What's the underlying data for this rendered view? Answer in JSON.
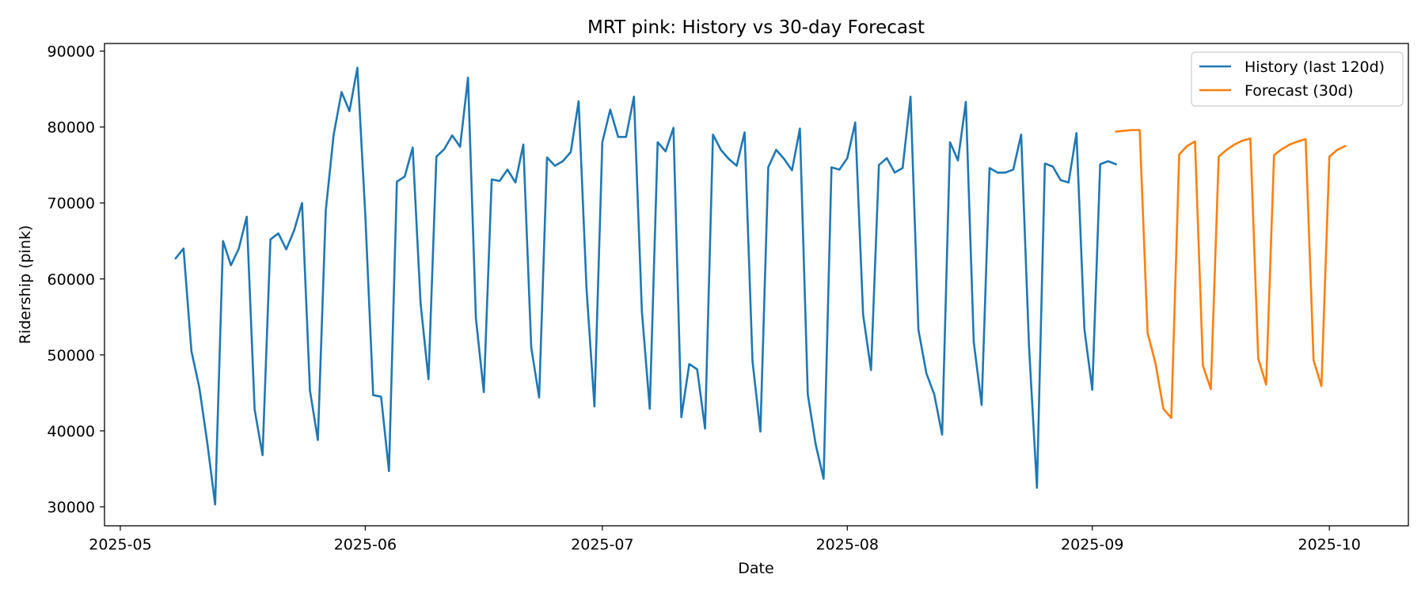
{
  "chart_data": {
    "type": "line",
    "title": "MRT pink: History vs 30-day Forecast",
    "xlabel": "Date",
    "ylabel": "Ridership (pink)",
    "x_type": "date",
    "xlim": [
      "2025-04-29",
      "2025-10-11"
    ],
    "ylim": [
      27500,
      91000
    ],
    "x_ticks": [
      "2025-05",
      "2025-06",
      "2025-07",
      "2025-08",
      "2025-09",
      "2025-10"
    ],
    "x_tick_dates": [
      "2025-05-01",
      "2025-06-01",
      "2025-07-01",
      "2025-08-01",
      "2025-09-01",
      "2025-10-01"
    ],
    "y_ticks": [
      30000,
      40000,
      50000,
      60000,
      70000,
      80000,
      90000
    ],
    "grid": false,
    "legend_position": "top-right",
    "colors": {
      "history": "#1f77b4",
      "forecast": "#ff7f0e"
    },
    "series": [
      {
        "name": "History (last 120d)",
        "color": "#1f77b4",
        "start_date": "2025-05-08",
        "values": [
          62700,
          64000,
          50500,
          45700,
          38500,
          30300,
          65000,
          61800,
          64000,
          68200,
          42800,
          36800,
          65200,
          66000,
          63900,
          66400,
          70000,
          45300,
          38800,
          69000,
          79000,
          84600,
          82100,
          87800,
          68500,
          44700,
          44500,
          34700,
          72800,
          73500,
          77300,
          56800,
          46800,
          76100,
          77100,
          78900,
          77400,
          86500,
          54800,
          45100,
          73100,
          72900,
          74400,
          72700,
          77700,
          51000,
          44400,
          76000,
          74900,
          75500,
          76700,
          83400,
          58700,
          43200,
          78000,
          82300,
          78700,
          78700,
          84000,
          55800,
          42900,
          78000,
          76800,
          79900,
          41800,
          48800,
          48100,
          40300,
          79000,
          77000,
          75800,
          74900,
          79300,
          49200,
          39900,
          74700,
          77000,
          75800,
          74300,
          79800,
          44800,
          38200,
          33700,
          74700,
          74400,
          75900,
          80600,
          55300,
          48000,
          75000,
          75900,
          74000,
          74600,
          84000,
          53300,
          47600,
          44800,
          39500,
          78000,
          75600,
          83300,
          51700,
          43400,
          74600,
          74000,
          74000,
          74400,
          79000,
          51000,
          32500,
          75200,
          74800,
          73000,
          72700,
          79200,
          53400,
          45400,
          75100,
          75500,
          75100
        ]
      },
      {
        "name": "Forecast (30d)",
        "color": "#ff7f0e",
        "start_date": "2025-09-04",
        "values": [
          79400,
          79500,
          79600,
          79600,
          52900,
          48900,
          42900,
          41700,
          76400,
          77500,
          78100,
          48600,
          45500,
          76100,
          77000,
          77700,
          78200,
          78500,
          49500,
          46100,
          76300,
          77100,
          77700,
          78100,
          78400,
          49300,
          45900,
          76100,
          77000,
          77500
        ]
      }
    ]
  }
}
